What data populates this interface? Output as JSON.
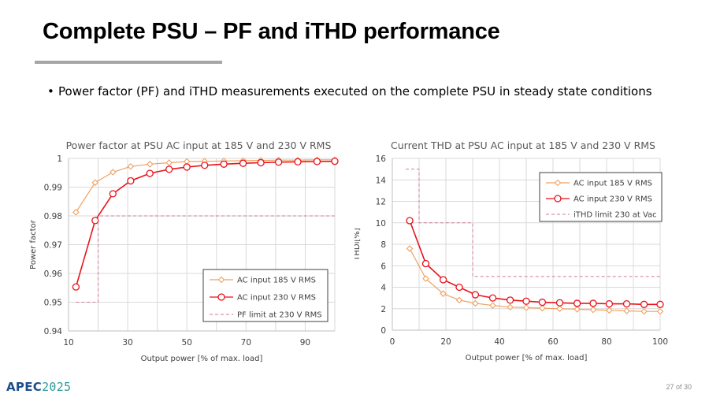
{
  "slide": {
    "title": "Complete PSU – PF and iTHD performance",
    "bullet": "Power factor (PF) and iTHD measurements executed on the complete PSU in steady state conditions",
    "logo": {
      "prefix": "APEC",
      "year": "2025"
    },
    "page_number": "27 of 30"
  },
  "colors": {
    "series_185": "#f0a060",
    "series_230": "#e8121b",
    "limit": "#d27a90",
    "grid": "#d9d9d9",
    "title_rule": "#a6a6a6"
  },
  "chart_data": [
    {
      "type": "line",
      "title": "Power factor at PSU AC input at 185 V and 230 V RMS",
      "xlabel": "Output power [% of max. load]",
      "ylabel": "Power factor",
      "xlim": [
        10,
        100
      ],
      "ylim": [
        0.94,
        1.0
      ],
      "xticks": [
        "10",
        "30",
        "50",
        "70",
        "90"
      ],
      "yticks": [
        "0.94",
        "0.95",
        "0.96",
        "0.97",
        "0.98",
        "0.99",
        "1"
      ],
      "grid": true,
      "legend_position": "bottom-right",
      "series": [
        {
          "name": "AC input 185 V RMS",
          "style": "diamond-line",
          "x": [
            12.5,
            19,
            25,
            31,
            37.5,
            44,
            50,
            56,
            62.5,
            69,
            75,
            81,
            87.5,
            94,
            100
          ],
          "y": [
            0.9813,
            0.9916,
            0.9952,
            0.9972,
            0.998,
            0.9985,
            0.9989,
            0.999,
            0.9991,
            0.9992,
            0.9993,
            0.9994,
            0.9994,
            0.9995,
            0.9995
          ]
        },
        {
          "name": "AC input 230 V RMS",
          "style": "circle-line",
          "x": [
            12.5,
            19,
            25,
            31,
            37.5,
            44,
            50,
            56,
            62.5,
            69,
            75,
            81,
            87.5,
            94,
            100
          ],
          "y": [
            0.9553,
            0.9784,
            0.9877,
            0.9922,
            0.9948,
            0.9962,
            0.997,
            0.9976,
            0.998,
            0.9983,
            0.9985,
            0.9987,
            0.9988,
            0.9989,
            0.999
          ]
        },
        {
          "name": "PF limit at 230 V RMS",
          "style": "dashed-step",
          "x": [
            12.5,
            20,
            20,
            100
          ],
          "y": [
            0.95,
            0.95,
            0.98,
            0.98
          ]
        }
      ]
    },
    {
      "type": "line",
      "title": "Current THD at PSU AC input at 185 V and 230 V RMS",
      "xlabel": "Output power [% of max. load]",
      "ylabel": "THDi[%]",
      "xlim": [
        0,
        100
      ],
      "ylim": [
        0,
        16
      ],
      "xticks": [
        "0",
        "20",
        "40",
        "60",
        "80",
        "100"
      ],
      "yticks": [
        "0",
        "2",
        "4",
        "6",
        "8",
        "10",
        "12",
        "14",
        "16"
      ],
      "grid": true,
      "legend_position": "top-right",
      "series": [
        {
          "name": "AC input 185 V RMS",
          "style": "diamond-line",
          "x": [
            6.5,
            12.5,
            19,
            25,
            31,
            37.5,
            44,
            50,
            56,
            62.5,
            69,
            75,
            81,
            87.5,
            94,
            100
          ],
          "y": [
            7.6,
            4.8,
            3.4,
            2.8,
            2.5,
            2.3,
            2.15,
            2.1,
            2.05,
            2.0,
            1.95,
            1.9,
            1.85,
            1.8,
            1.75,
            1.75
          ]
        },
        {
          "name": "AC input 230 V RMS",
          "style": "circle-line",
          "x": [
            6.5,
            12.5,
            19,
            25,
            31,
            37.5,
            44,
            50,
            56,
            62.5,
            69,
            75,
            81,
            87.5,
            94,
            100
          ],
          "y": [
            10.2,
            6.2,
            4.7,
            4.0,
            3.3,
            3.0,
            2.8,
            2.7,
            2.6,
            2.55,
            2.5,
            2.5,
            2.45,
            2.45,
            2.4,
            2.4
          ]
        },
        {
          "name": "iTHD limit 230 at Vac",
          "style": "dashed-step",
          "x": [
            5,
            10,
            10,
            30,
            30,
            100
          ],
          "y": [
            15,
            15,
            10,
            10,
            5,
            5
          ]
        }
      ]
    }
  ]
}
